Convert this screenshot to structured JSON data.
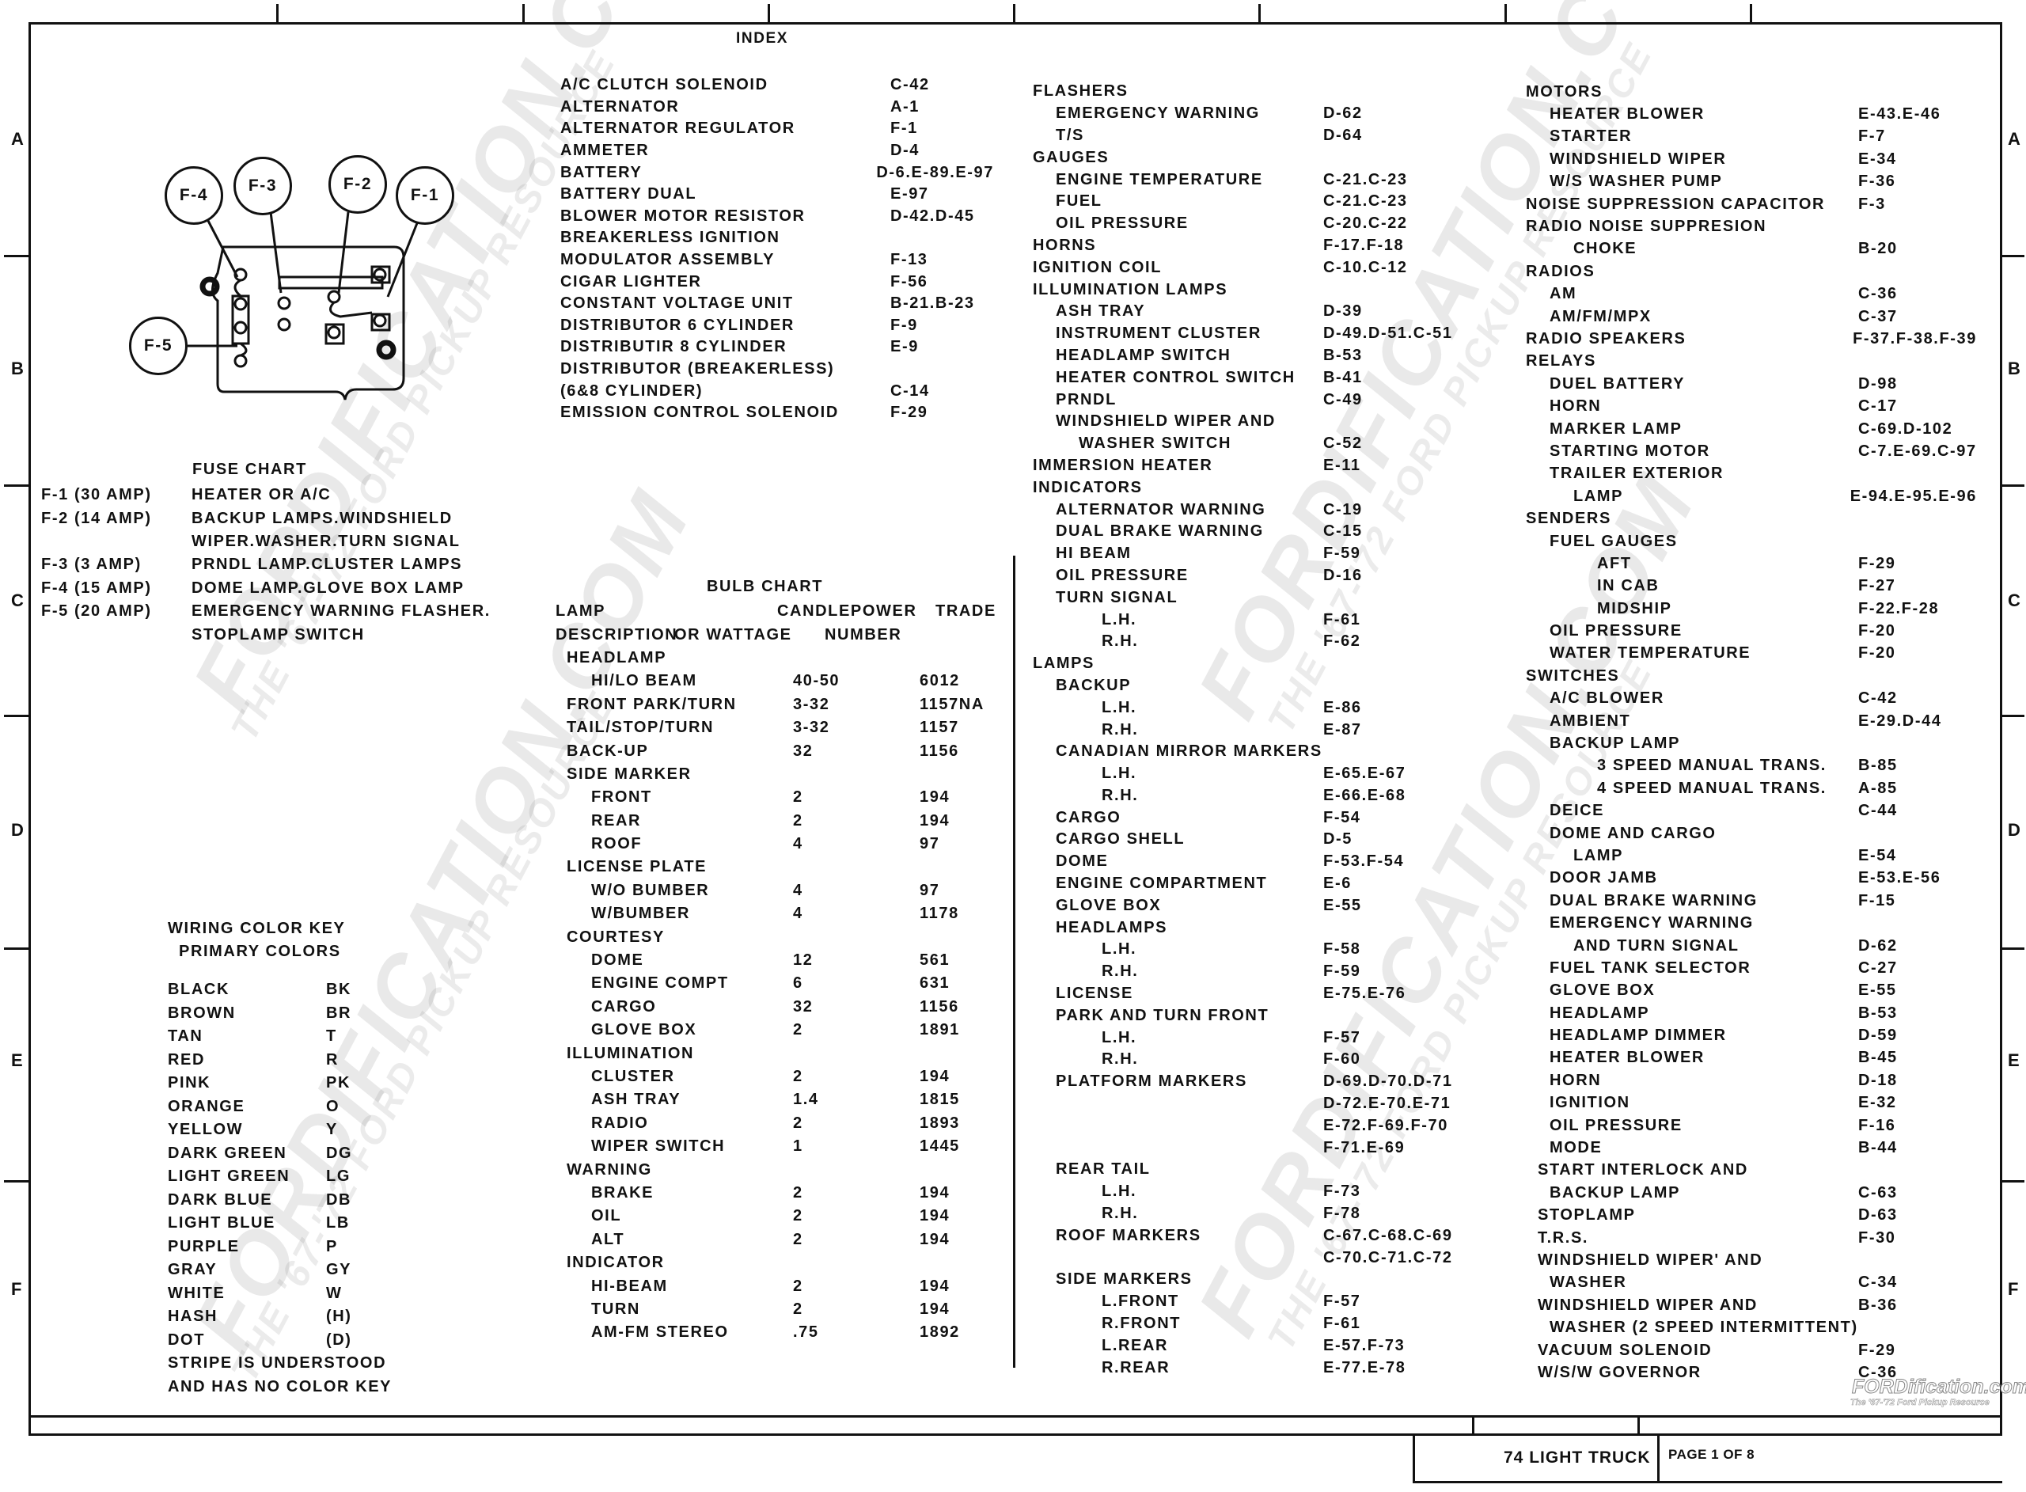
{
  "sheet": {
    "side_letters_left": [
      "A",
      "B",
      "C",
      "D",
      "E",
      "F"
    ],
    "side_letters_right": [
      "A",
      "B",
      "C",
      "D",
      "E",
      "F"
    ],
    "footer_title": "74  LIGHT  TRUCK",
    "footer_page": "PAGE 1 OF 8",
    "watermark": "FORDIFICATION.COM",
    "watermark_sub": "THE '67-'72 FORD PICKUP RESOURCE",
    "logo": "FORDification.com",
    "logo_sub": "The '67-'72 Ford Pickup Resource"
  },
  "fuse_diagram": {
    "labels": [
      "F-4",
      "F-3",
      "F-2",
      "F-1",
      "F-5"
    ]
  },
  "fuse_chart": {
    "title": "FUSE CHART",
    "rows": [
      {
        "fuse": "F-1 (30 AMP)",
        "desc": "HEATER OR A/C"
      },
      {
        "fuse": "F-2 (14 AMP)",
        "desc": "BACKUP LAMPS.WINDSHIELD"
      },
      {
        "fuse": "",
        "desc": "WIPER.WASHER.TURN SIGNAL"
      },
      {
        "fuse": "F-3 (3 AMP)",
        "desc": "PRNDL LAMP.CLUSTER LAMPS"
      },
      {
        "fuse": "F-4 (15 AMP)",
        "desc": "DOME LAMP.GLOVE BOX LAMP"
      },
      {
        "fuse": "F-5 (20 AMP)",
        "desc": "EMERGENCY WARNING FLASHER."
      },
      {
        "fuse": "",
        "desc": "STOPLAMP SWITCH"
      }
    ]
  },
  "color_key": {
    "title": "WIRING COLOR KEY",
    "subtitle": "PRIMARY COLORS",
    "rows": [
      {
        "color": "BLACK",
        "code": "BK"
      },
      {
        "color": "BROWN",
        "code": "BR"
      },
      {
        "color": "TAN",
        "code": "T"
      },
      {
        "color": "RED",
        "code": "R"
      },
      {
        "color": "PINK",
        "code": "PK"
      },
      {
        "color": "ORANGE",
        "code": "O"
      },
      {
        "color": "YELLOW",
        "code": "Y"
      },
      {
        "color": "DARK GREEN",
        "code": "DG"
      },
      {
        "color": "LIGHT GREEN",
        "code": "LG"
      },
      {
        "color": "DARK BLUE",
        "code": "DB"
      },
      {
        "color": "LIGHT BLUE",
        "code": "LB"
      },
      {
        "color": "PURPLE",
        "code": "P"
      },
      {
        "color": "GRAY",
        "code": "GY"
      },
      {
        "color": "WHITE",
        "code": "W"
      },
      {
        "color": "HASH",
        "code": "(H)"
      },
      {
        "color": "DOT",
        "code": "(D)"
      }
    ],
    "note_lines": [
      "STRIPE IS UNDERSTOOD",
      "AND HAS NO COLOR KEY"
    ]
  },
  "bulb_chart": {
    "title": "BULB CHART",
    "headers": [
      {
        "lamp": "LAMP",
        "cp": "CANDLEPOWER",
        "trade": "TRADE"
      },
      {
        "lamp": "DESCRIPTION",
        "cp": "OR WATTAGE",
        "trade": "NUMBER"
      }
    ],
    "rows": [
      {
        "lamp": "HEADLAMP",
        "cp": "",
        "trade": "",
        "level": 1
      },
      {
        "lamp": "HI/LO  BEAM",
        "cp": "40-50",
        "trade": "6012",
        "level": 2
      },
      {
        "lamp": "FRONT PARK/TURN",
        "cp": "3-32",
        "trade": "1157NA",
        "level": 1
      },
      {
        "lamp": "TAIL/STOP/TURN",
        "cp": "3-32",
        "trade": "1157",
        "level": 1
      },
      {
        "lamp": "BACK-UP",
        "cp": "32",
        "trade": "1156",
        "level": 1
      },
      {
        "lamp": "SIDE MARKER",
        "cp": "",
        "trade": "",
        "level": 1
      },
      {
        "lamp": "FRONT",
        "cp": "2",
        "trade": "194",
        "level": 2
      },
      {
        "lamp": "REAR",
        "cp": "2",
        "trade": "194",
        "level": 2
      },
      {
        "lamp": "ROOF",
        "cp": "4",
        "trade": "97",
        "level": 2
      },
      {
        "lamp": "LICENSE PLATE",
        "cp": "",
        "trade": "",
        "level": 1
      },
      {
        "lamp": "W/O BUMBER",
        "cp": "4",
        "trade": "97",
        "level": 2
      },
      {
        "lamp": "W/BUMBER",
        "cp": "4",
        "trade": "1178",
        "level": 2
      },
      {
        "lamp": "COURTESY",
        "cp": "",
        "trade": "",
        "level": 1
      },
      {
        "lamp": "DOME",
        "cp": "12",
        "trade": "561",
        "level": 2
      },
      {
        "lamp": "ENGINE COMPT",
        "cp": "6",
        "trade": "631",
        "level": 2
      },
      {
        "lamp": "CARGO",
        "cp": "32",
        "trade": "1156",
        "level": 2
      },
      {
        "lamp": "GLOVE BOX",
        "cp": "2",
        "trade": "1891",
        "level": 2
      },
      {
        "lamp": "ILLUMINATION",
        "cp": "",
        "trade": "",
        "level": 1
      },
      {
        "lamp": "CLUSTER",
        "cp": "2",
        "trade": "194",
        "level": 2
      },
      {
        "lamp": "ASH TRAY",
        "cp": "1.4",
        "trade": "1815",
        "level": 2
      },
      {
        "lamp": "RADIO",
        "cp": "2",
        "trade": "1893",
        "level": 2
      },
      {
        "lamp": "WIPER SWITCH",
        "cp": "1",
        "trade": "1445",
        "level": 2
      },
      {
        "lamp": "WARNING",
        "cp": "",
        "trade": "",
        "level": 1
      },
      {
        "lamp": "BRAKE",
        "cp": "2",
        "trade": "194",
        "level": 2
      },
      {
        "lamp": "OIL",
        "cp": "2",
        "trade": "194",
        "level": 2
      },
      {
        "lamp": "ALT",
        "cp": "2",
        "trade": "194",
        "level": 2
      },
      {
        "lamp": "INDICATOR",
        "cp": "",
        "trade": "",
        "level": 1
      },
      {
        "lamp": "HI-BEAM",
        "cp": "2",
        "trade": "194",
        "level": 2
      },
      {
        "lamp": "TURN",
        "cp": "2",
        "trade": "194",
        "level": 2
      },
      {
        "lamp": "AM-FM STEREO",
        "cp": ".75",
        "trade": "1892",
        "level": 2
      }
    ]
  },
  "index": {
    "title": "INDEX",
    "col1": [
      {
        "name": "A/C CLUTCH SOLENOID",
        "code": "C-42",
        "level": 0
      },
      {
        "name": "ALTERNATOR",
        "code": "A-1",
        "level": 0
      },
      {
        "name": "ALTERNATOR REGULATOR",
        "code": "F-1",
        "level": 0
      },
      {
        "name": "AMMETER",
        "code": "D-4",
        "level": 0
      },
      {
        "name": "BATTERY",
        "code": "D-6.E-89.E-97",
        "level": 0
      },
      {
        "name": "BATTERY DUAL",
        "code": "E-97",
        "level": 0
      },
      {
        "name": "BLOWER MOTOR RESISTOR",
        "code": "D-42.D-45",
        "level": 0
      },
      {
        "name": "BREAKERLESS IGNITION",
        "code": "",
        "level": 0
      },
      {
        "name": "MODULATOR ASSEMBLY",
        "code": "F-13",
        "level": 0
      },
      {
        "name": "CIGAR LIGHTER",
        "code": "F-56",
        "level": 0
      },
      {
        "name": "CONSTANT VOLTAGE UNIT",
        "code": "B-21.B-23",
        "level": 0
      },
      {
        "name": "DISTRIBUTOR 6 CYLINDER",
        "code": "F-9",
        "level": 0
      },
      {
        "name": "DISTRIBUTIR 8 CYLINDER",
        "code": "E-9",
        "level": 0
      },
      {
        "name": "DISTRIBUTOR (BREAKERLESS)",
        "code": "",
        "level": 0
      },
      {
        "name": "(6&8 CYLINDER)",
        "code": "C-14",
        "level": 0
      },
      {
        "name": "EMISSION CONTROL SOLENOID",
        "code": "F-29",
        "level": 0
      }
    ],
    "col2": [
      {
        "name": "FLASHERS",
        "code": "",
        "level": 0
      },
      {
        "name": "EMERGENCY WARNING",
        "code": "D-62",
        "level": 1
      },
      {
        "name": "T/S",
        "code": "D-64",
        "level": 1
      },
      {
        "name": "GAUGES",
        "code": "",
        "level": 0
      },
      {
        "name": "ENGINE TEMPERATURE",
        "code": "C-21.C-23",
        "level": 1
      },
      {
        "name": "FUEL",
        "code": "C-21.C-23",
        "level": 1
      },
      {
        "name": "OIL PRESSURE",
        "code": "C-20.C-22",
        "level": 1
      },
      {
        "name": "HORNS",
        "code": "F-17.F-18",
        "level": 0
      },
      {
        "name": "IGNITION COIL",
        "code": "C-10.C-12",
        "level": 0
      },
      {
        "name": "ILLUMINATION LAMPS",
        "code": "",
        "level": 0
      },
      {
        "name": "ASH TRAY",
        "code": "D-39",
        "level": 1
      },
      {
        "name": "INSTRUMENT CLUSTER",
        "code": "D-49.D-51.C-51",
        "level": 1
      },
      {
        "name": "HEADLAMP SWITCH",
        "code": "B-53",
        "level": 1
      },
      {
        "name": "HEATER CONTROL SWITCH",
        "code": "B-41",
        "level": 1
      },
      {
        "name": "PRNDL",
        "code": "C-49",
        "level": 1
      },
      {
        "name": "WINDSHIELD WIPER AND",
        "code": "",
        "level": 1
      },
      {
        "name": "WASHER SWITCH",
        "code": "C-52",
        "level": 2
      },
      {
        "name": "IMMERSION HEATER",
        "code": "E-11",
        "level": 0
      },
      {
        "name": "INDICATORS",
        "code": "",
        "level": 0
      },
      {
        "name": "ALTERNATOR WARNING",
        "code": "C-19",
        "level": 1
      },
      {
        "name": "DUAL BRAKE WARNING",
        "code": "C-15",
        "level": 1
      },
      {
        "name": "HI BEAM",
        "code": "F-59",
        "level": 1
      },
      {
        "name": "OIL PRESSURE",
        "code": "D-16",
        "level": 1
      },
      {
        "name": "TURN SIGNAL",
        "code": "",
        "level": 1
      },
      {
        "name": "L.H.",
        "code": "F-61",
        "level": 3
      },
      {
        "name": "R.H.",
        "code": "F-62",
        "level": 3
      },
      {
        "name": "LAMPS",
        "code": "",
        "level": 0
      },
      {
        "name": "BACKUP",
        "code": "",
        "level": 1
      },
      {
        "name": "L.H.",
        "code": "E-86",
        "level": 3
      },
      {
        "name": "R.H.",
        "code": "E-87",
        "level": 3
      },
      {
        "name": "CANADIAN MIRROR MARKERS",
        "code": "",
        "level": 1
      },
      {
        "name": "L.H.",
        "code": "E-65.E-67",
        "level": 3
      },
      {
        "name": "R.H.",
        "code": "E-66.E-68",
        "level": 3
      },
      {
        "name": "CARGO",
        "code": "F-54",
        "level": 1
      },
      {
        "name": "CARGO SHELL",
        "code": "D-5",
        "level": 1
      },
      {
        "name": "DOME",
        "code": "F-53.F-54",
        "level": 1
      },
      {
        "name": "ENGINE COMPARTMENT",
        "code": "E-6",
        "level": 1
      },
      {
        "name": "GLOVE BOX",
        "code": "E-55",
        "level": 1
      },
      {
        "name": "HEADLAMPS",
        "code": "",
        "level": 1
      },
      {
        "name": "L.H.",
        "code": "F-58",
        "level": 3
      },
      {
        "name": "R.H.",
        "code": "F-59",
        "level": 3
      },
      {
        "name": "LICENSE",
        "code": "E-75.E-76",
        "level": 1
      },
      {
        "name": "PARK AND TURN FRONT",
        "code": "",
        "level": 1
      },
      {
        "name": "L.H.",
        "code": "F-57",
        "level": 3
      },
      {
        "name": "R.H.",
        "code": "F-60",
        "level": 3
      },
      {
        "name": "PLATFORM MARKERS",
        "code": "D-69.D-70.D-71",
        "level": 1
      },
      {
        "name": "",
        "code": "D-72.E-70.E-71",
        "level": 1
      },
      {
        "name": "",
        "code": "E-72.F-69.F-70",
        "level": 1
      },
      {
        "name": "",
        "code": "F-71.E-69",
        "level": 1
      },
      {
        "name": "REAR TAIL",
        "code": "",
        "level": 1
      },
      {
        "name": "L.H.",
        "code": "F-73",
        "level": 3
      },
      {
        "name": "R.H.",
        "code": "F-78",
        "level": 3
      },
      {
        "name": "ROOF MARKERS",
        "code": "C-67.C-68.C-69",
        "level": 1
      },
      {
        "name": "",
        "code": "C-70.C-71.C-72",
        "level": 1
      },
      {
        "name": "SIDE MARKERS",
        "code": "",
        "level": 1
      },
      {
        "name": "L.FRONT",
        "code": "F-57",
        "level": 3
      },
      {
        "name": "R.FRONT",
        "code": "F-61",
        "level": 3
      },
      {
        "name": "L.REAR",
        "code": "E-57.F-73",
        "level": 3
      },
      {
        "name": "R.REAR",
        "code": "E-77.E-78",
        "level": 3
      }
    ],
    "col3": [
      {
        "name": "MOTORS",
        "code": "",
        "level": 0
      },
      {
        "name": "HEATER BLOWER",
        "code": "E-43.E-46",
        "level": 1
      },
      {
        "name": "STARTER",
        "code": "F-7",
        "level": 1
      },
      {
        "name": "WINDSHIELD WIPER",
        "code": "E-34",
        "level": 1
      },
      {
        "name": "W/S WASHER PUMP",
        "code": "F-36",
        "level": 1
      },
      {
        "name": "NOISE SUPPRESSION CAPACITOR",
        "code": "F-3",
        "level": 0
      },
      {
        "name": "RADIO NOISE SUPPRESION",
        "code": "",
        "level": 0
      },
      {
        "name": "CHOKE",
        "code": "B-20",
        "level": 2
      },
      {
        "name": "RADIOS",
        "code": "",
        "level": 0
      },
      {
        "name": "AM",
        "code": "C-36",
        "level": 1
      },
      {
        "name": "AM/FM/MPX",
        "code": "C-37",
        "level": 1
      },
      {
        "name": "RADIO SPEAKERS",
        "code": "F-37.F-38.F-39",
        "level": 0
      },
      {
        "name": "RELAYS",
        "code": "",
        "level": 0
      },
      {
        "name": "DUEL BATTERY",
        "code": "D-98",
        "level": 1
      },
      {
        "name": "HORN",
        "code": "C-17",
        "level": 1
      },
      {
        "name": "MARKER LAMP",
        "code": "C-69.D-102",
        "level": 1
      },
      {
        "name": "STARTING MOTOR",
        "code": "C-7.E-69.C-97",
        "level": 1
      },
      {
        "name": "TRAILER EXTERIOR",
        "code": "",
        "level": 1
      },
      {
        "name": "LAMP",
        "code": "E-94.E-95.E-96",
        "level": 2
      },
      {
        "name": "SENDERS",
        "code": "",
        "level": 0
      },
      {
        "name": "FUEL GAUGES",
        "code": "",
        "level": 1
      },
      {
        "name": "AFT",
        "code": "F-29",
        "level": 3
      },
      {
        "name": "IN CAB",
        "code": "F-27",
        "level": 3
      },
      {
        "name": "MIDSHIP",
        "code": "F-22.F-28",
        "level": 3
      },
      {
        "name": "OIL PRESSURE",
        "code": "F-20",
        "level": 1
      },
      {
        "name": "WATER TEMPERATURE",
        "code": "F-20",
        "level": 1
      },
      {
        "name": "SWITCHES",
        "code": "",
        "level": 0
      },
      {
        "name": "A/C BLOWER",
        "code": "C-42",
        "level": 1
      },
      {
        "name": "AMBIENT",
        "code": "E-29.D-44",
        "level": 1
      },
      {
        "name": "BACKUP LAMP",
        "code": "",
        "level": 1
      },
      {
        "name": "3 SPEED MANUAL TRANS.",
        "code": "B-85",
        "level": 3
      },
      {
        "name": "4 SPEED MANUAL TRANS.",
        "code": "A-85",
        "level": 3
      },
      {
        "name": "DEICE",
        "code": "C-44",
        "level": 1
      },
      {
        "name": "DOME AND CARGO",
        "code": "",
        "level": 1
      },
      {
        "name": "LAMP",
        "code": "E-54",
        "level": 2
      },
      {
        "name": "DOOR JAMB",
        "code": "E-53.E-56",
        "level": 1
      },
      {
        "name": "DUAL BRAKE WARNING",
        "code": "F-15",
        "level": 1
      },
      {
        "name": "EMERGENCY WARNING",
        "code": "",
        "level": 1
      },
      {
        "name": "AND TURN SIGNAL",
        "code": "D-62",
        "level": 2
      },
      {
        "name": "FUEL TANK SELECTOR",
        "code": "C-27",
        "level": 1
      },
      {
        "name": "GLOVE BOX",
        "code": "E-55",
        "level": 1
      },
      {
        "name": "HEADLAMP",
        "code": "B-53",
        "level": 1
      },
      {
        "name": "HEADLAMP DIMMER",
        "code": "D-59",
        "level": 1
      },
      {
        "name": "HEATER BLOWER",
        "code": "B-45",
        "level": 1
      },
      {
        "name": "HORN",
        "code": "D-18",
        "level": 1
      },
      {
        "name": "IGNITION",
        "code": "E-32",
        "level": 1
      },
      {
        "name": "OIL PRESSURE",
        "code": "F-16",
        "level": 1
      },
      {
        "name": "MODE",
        "code": "B-44",
        "level": 1
      },
      {
        "name": "START INTERLOCK AND",
        "code": "",
        "level": 0.5
      },
      {
        "name": "BACKUP LAMP",
        "code": "C-63",
        "level": 1
      },
      {
        "name": "STOPLAMP",
        "code": "D-63",
        "level": 0.5
      },
      {
        "name": "T.R.S.",
        "code": "F-30",
        "level": 0.5
      },
      {
        "name": "WINDSHIELD WIPER' AND",
        "code": "",
        "level": 0.5
      },
      {
        "name": "WASHER",
        "code": "C-34",
        "level": 1
      },
      {
        "name": "WINDSHIELD WIPER AND",
        "code": "B-36",
        "level": 0.5
      },
      {
        "name": "WASHER (2 SPEED INTERMITTENT)",
        "code": "",
        "level": 1
      },
      {
        "name": "VACUUM SOLENOID",
        "code": "F-29",
        "level": 0.5
      },
      {
        "name": "W/S/W GOVERNOR",
        "code": "C-36",
        "level": 0.5
      }
    ]
  }
}
